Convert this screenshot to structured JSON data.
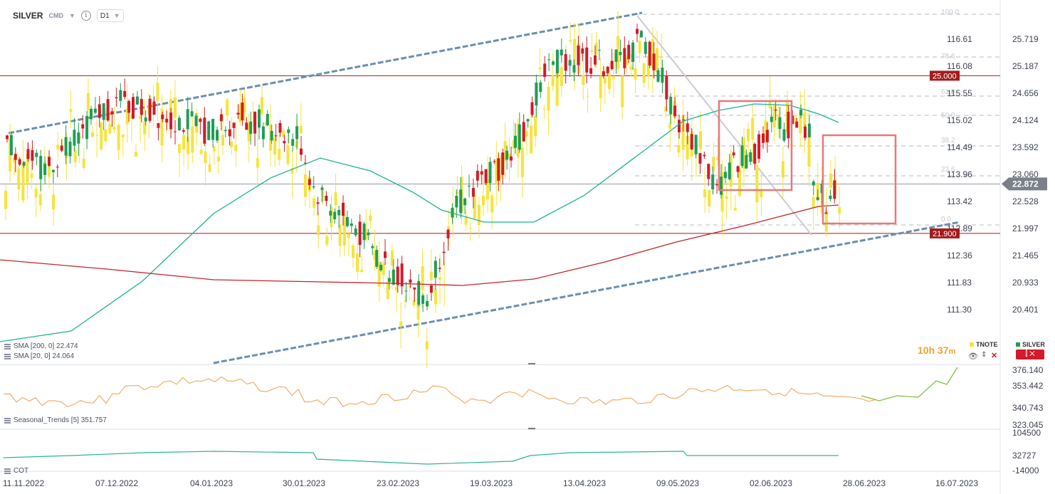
{
  "toolbar": {
    "symbol": "SILVER",
    "source": "CMD",
    "timeframe": "D1"
  },
  "price_axis": {
    "silver_ticks": [
      "25.719",
      "25.187",
      "24.656",
      "24.124",
      "23.592",
      "23.060",
      "22.528",
      "21.997",
      "21.465",
      "20.933",
      "20.401"
    ],
    "tnote_ticks": [
      "116.61",
      "116.08",
      "115.55",
      "115.02",
      "114.49",
      "113.96",
      "113.42",
      "112.89",
      "112.36",
      "111.83",
      "111.30"
    ],
    "current_price": "22.872",
    "level_high": "25.000",
    "level_low": "21.900"
  },
  "fib_labels": [
    "100.0",
    "78.6",
    "61.8",
    "50.0",
    "38.2",
    "23.6",
    "0.0"
  ],
  "indicators": {
    "sma200": "SMA [200, 0] 22.474",
    "sma20": "SMA [20, 0] 24.064",
    "seasonal": "Seasonal_Trends [5] 351.757",
    "cot": "COT"
  },
  "legend": {
    "tnote": "TNOTE",
    "silver": "SILVER"
  },
  "timer": {
    "hours": "10h",
    "minutes": "37",
    "unit": "m"
  },
  "seasonal_axis": [
    "376.140",
    "353.442",
    "340.743",
    "323.045"
  ],
  "cot_axis": [
    "104500",
    "32727",
    "-14000"
  ],
  "dates": [
    "11.11.2022",
    "07.12.2022",
    "04.01.2023",
    "30.01.2023",
    "23.02.2023",
    "19.03.2023",
    "13.04.2023",
    "09.05.2023",
    "02.06.2023",
    "28.06.2023",
    "16.07.2023"
  ],
  "colors": {
    "up": "#1f9d55",
    "down": "#d11a2a",
    "tnote": "#f5e43c",
    "sma20": "#1bb394",
    "sma200": "#c0262d",
    "channel": "#6a8fb0",
    "seasonal": "#f0a050",
    "seasonal_forecast": "#7cbf3a",
    "cot": "#2bb39a",
    "box": "#e87878"
  },
  "chart_data": {
    "type": "candlestick",
    "series": [
      {
        "name": "SILVER"
      },
      {
        "name": "TNOTE"
      }
    ],
    "horizontal_levels": [
      25.0,
      21.9
    ],
    "last_price": 22.872,
    "sma": [
      {
        "period": 200,
        "value": 22.474
      },
      {
        "period": 20,
        "value": 24.064
      }
    ]
  }
}
